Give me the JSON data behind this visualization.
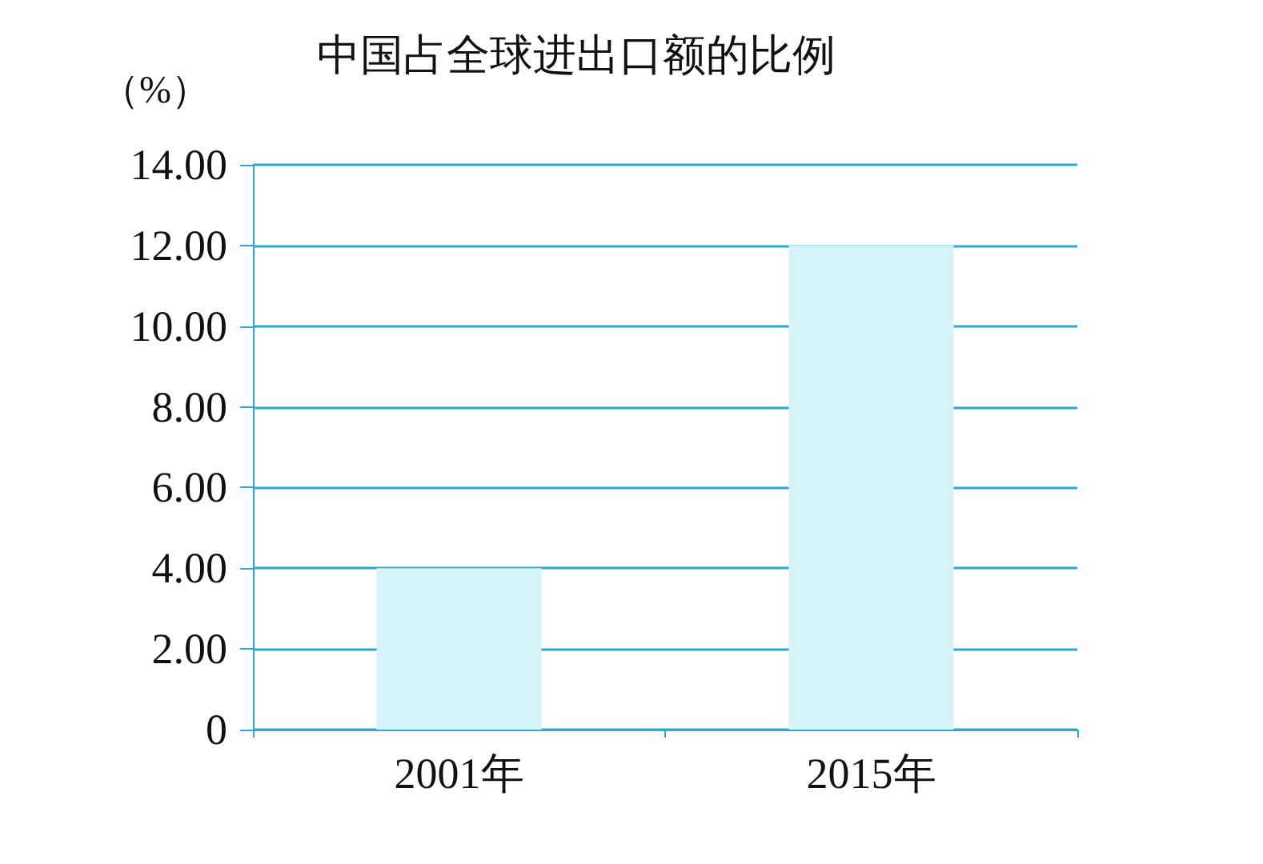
{
  "chart_data": {
    "type": "bar",
    "title": "中国占全球进出口额的比例",
    "ylabel": "（%）",
    "categories": [
      "2001年",
      "2015年"
    ],
    "values": [
      4.0,
      12.0
    ],
    "color": "#d4f4fa",
    "ylim": [
      0,
      14
    ],
    "yticks": [
      0,
      {
        "value": 2,
        "label": "2.00"
      },
      {
        "value": 4,
        "label": "4.00"
      },
      {
        "value": 6,
        "label": "6.00"
      },
      {
        "value": 8,
        "label": "8.00"
      },
      {
        "value": 10,
        "label": "10.00"
      },
      {
        "value": 12,
        "label": "12.00"
      },
      {
        "value": 14,
        "label": "14.00"
      }
    ],
    "grid": true
  }
}
